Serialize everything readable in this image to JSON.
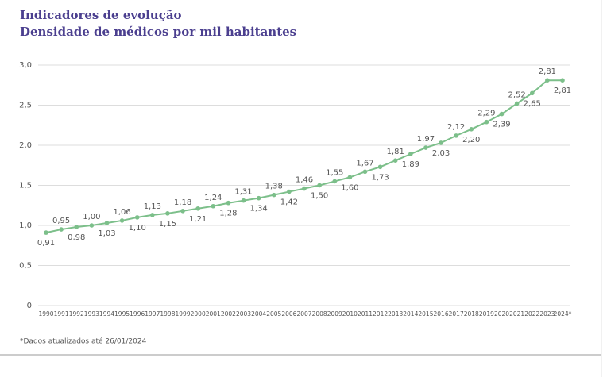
{
  "chart_data": {
    "type": "line",
    "title": "Indicadores de evolução",
    "subtitle": "Densidade de médicos por mil habitantes",
    "footnote": "*Dados atualizados até 26/01/2024",
    "color": "#7cbf8a",
    "grid": true,
    "categories": [
      "1990",
      "1991",
      "1992",
      "1993",
      "1994",
      "1995",
      "1996",
      "1997",
      "1998",
      "1999",
      "2000",
      "2001",
      "2002",
      "2003",
      "2004",
      "2005",
      "2006",
      "2007",
      "2008",
      "2009",
      "2010",
      "2011",
      "2012",
      "2013",
      "2014",
      "2015",
      "2016",
      "2017",
      "2018",
      "2019",
      "2020",
      "2021",
      "2022",
      "2023",
      "2024*"
    ],
    "values": [
      0.91,
      0.95,
      0.98,
      1.0,
      1.03,
      1.06,
      1.1,
      1.13,
      1.15,
      1.18,
      1.21,
      1.24,
      1.28,
      1.31,
      1.34,
      1.38,
      1.42,
      1.46,
      1.5,
      1.55,
      1.6,
      1.67,
      1.73,
      1.81,
      1.89,
      1.97,
      2.03,
      2.12,
      2.2,
      2.29,
      2.39,
      2.52,
      2.65,
      2.81,
      2.81
    ],
    "value_labels": [
      "0,91",
      "0,95",
      "0,98",
      "1,00",
      "1,03",
      "1,06",
      "1,10",
      "1,13",
      "1,15",
      "1,18",
      "1,21",
      "1,24",
      "1,28",
      "1,31",
      "1,34",
      "1,38",
      "1,42",
      "1,46",
      "1,50",
      "1,55",
      "1,60",
      "1,67",
      "1,73",
      "1,81",
      "1,89",
      "1,97",
      "2,03",
      "2,12",
      "2,20",
      "2,29",
      "2,39",
      "2,52",
      "2,65",
      "2,81",
      "2,81"
    ],
    "ylim": [
      0,
      3.0
    ],
    "yticks": [
      0,
      {
        "value": 0.5,
        "label": "0,5"
      },
      {
        "value": 1.0,
        "label": "1,0"
      },
      {
        "value": 1.5,
        "label": "1,5"
      },
      {
        "value": 2.0,
        "label": "2,0"
      },
      {
        "value": 2.5,
        "label": "2,5"
      },
      {
        "value": 3.0,
        "label": "3,0"
      }
    ]
  }
}
